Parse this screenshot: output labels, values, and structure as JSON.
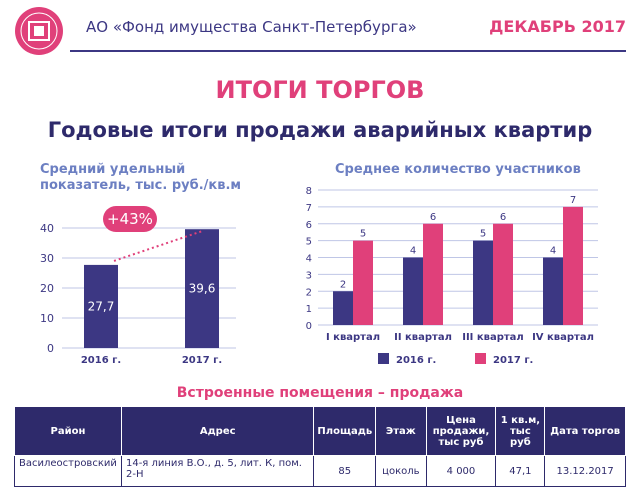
{
  "header": {
    "org": "АО «Фонд имущества Санкт-Петербурга»",
    "date": "ДЕКАБРЬ 2017"
  },
  "title": "ИТОГИ ТОРГОВ",
  "subtitle": "Годовые итоги продажи аварийных квартир",
  "colors": {
    "navy": "#3c3783",
    "pink": "#e0407a",
    "lightblue": "#6c7fc2"
  },
  "chart_data": [
    {
      "type": "bar",
      "title": "Средний удельный показатель, тыс. руб./кв.м",
      "categories": [
        "2016 г.",
        "2017 г."
      ],
      "values": [
        27.7,
        39.6
      ],
      "value_labels": [
        "27,7",
        "39,6"
      ],
      "annotation": "+43%",
      "ylim": [
        0,
        40
      ],
      "yticks": [
        0,
        10,
        20,
        30,
        40
      ],
      "grid": true
    },
    {
      "type": "bar",
      "title": "Среднее количество участников",
      "categories": [
        "I квартал",
        "II квартал",
        "III квартал",
        "IV квартал"
      ],
      "series": [
        {
          "name": "2016 г.",
          "values": [
            2,
            4,
            5,
            4
          ]
        },
        {
          "name": "2017 г.",
          "values": [
            5,
            6,
            6,
            7
          ]
        }
      ],
      "ylim": [
        0,
        8
      ],
      "yticks": [
        0,
        1,
        2,
        3,
        4,
        5,
        6,
        7,
        8
      ],
      "grid": true,
      "legend": "bottom"
    }
  ],
  "table": {
    "title": "Встроенные помещения – продажа",
    "headers": [
      "Район",
      "Адрес",
      "Площадь",
      "Этаж",
      "Цена продажи, тыс руб",
      "1 кв.м, тыс руб",
      "Дата торгов"
    ],
    "rows": [
      [
        "Василеостровский",
        "14-я линия В.О., д. 5, лит. К, пом. 2-Н",
        "85",
        "цоколь",
        "4 000",
        "47,1",
        "13.12.2017"
      ]
    ]
  }
}
